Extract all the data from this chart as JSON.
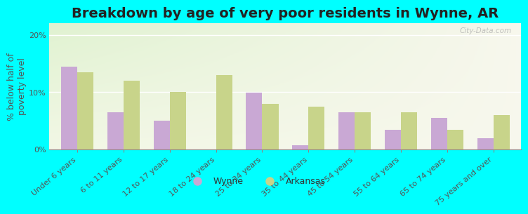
{
  "title": "Breakdown by age of very poor residents in Wynne, AR",
  "ylabel": "% below half of\npoverty level",
  "categories": [
    "Under 6 years",
    "6 to 11 years",
    "12 to 17 years",
    "18 to 24 years",
    "25 to 34 years",
    "35 to 44 years",
    "45 to 54 years",
    "55 to 64 years",
    "65 to 74 years",
    "75 years and over"
  ],
  "wynne_values": [
    14.5,
    6.5,
    5.0,
    0.0,
    9.9,
    0.8,
    6.5,
    3.5,
    5.5,
    2.0
  ],
  "arkansas_values": [
    13.5,
    12.0,
    10.0,
    13.0,
    8.0,
    7.5,
    6.5,
    6.5,
    3.5,
    6.0
  ],
  "wynne_color": "#c9a8d4",
  "arkansas_color": "#c8d48a",
  "background_color": "#00ffff",
  "ylim": [
    0,
    22
  ],
  "yticks": [
    0,
    10,
    20
  ],
  "ytick_labels": [
    "0%",
    "10%",
    "20%"
  ],
  "bar_width": 0.35,
  "watermark": "City-Data.com",
  "legend_labels": [
    "Wynne",
    "Arkansas"
  ],
  "title_fontsize": 14,
  "axis_label_fontsize": 9,
  "tick_fontsize": 8
}
